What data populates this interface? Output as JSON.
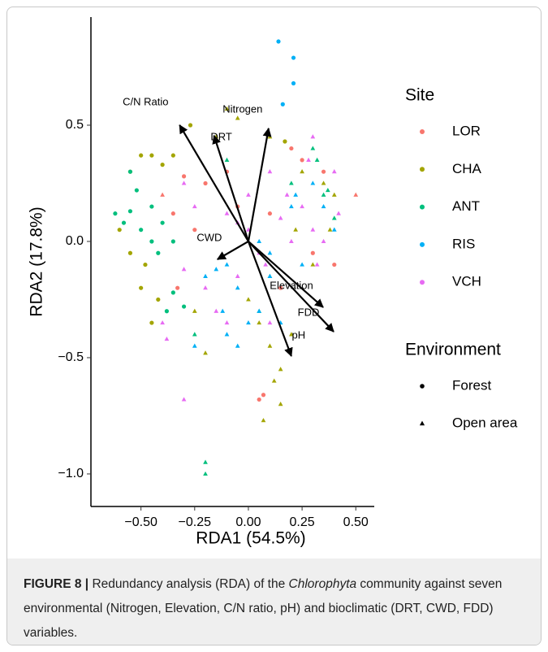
{
  "chart_data": {
    "type": "scatter",
    "x_label": "RDA1 (54.5%)",
    "y_label": "RDA2 (17.8%)",
    "xlim": [
      -0.733,
      0.586
    ],
    "ylim": [
      -1.14,
      0.965
    ],
    "xticks": [
      {
        "value": -0.5,
        "label": "−0.50"
      },
      {
        "value": -0.25,
        "label": "−0.25"
      },
      {
        "value": 0,
        "label": "0.00"
      },
      {
        "value": 0.25,
        "label": "0.25"
      },
      {
        "value": 0.5,
        "label": "0.50"
      }
    ],
    "yticks": [
      {
        "value": -1.0,
        "label": "−1.0"
      },
      {
        "value": -0.5,
        "label": "−0.5"
      },
      {
        "value": 0,
        "label": "0.0"
      },
      {
        "value": 0.5,
        "label": "0.5"
      }
    ],
    "legend_title": "Site",
    "series": [
      {
        "name": "LOR",
        "color": "#F8766D",
        "x": [
          -0.3,
          -0.35,
          -0.33,
          -0.2,
          0.05,
          0.07,
          0.5,
          0.4,
          0.25,
          0.1,
          -0.1,
          0.3,
          -0.4,
          0.15,
          0.2,
          -0.05,
          0.35,
          -0.25
        ],
        "values": [
          0.28,
          0.12,
          -0.2,
          0.25,
          -0.68,
          -0.66,
          0.2,
          -0.1,
          0.35,
          0.12,
          0.3,
          -0.05,
          0.2,
          -0.2,
          0.4,
          0.15,
          0.3,
          0.05
        ],
        "markers": [
          "circle",
          "circle",
          "circle",
          "circle",
          "circle",
          "circle",
          "triangle",
          "circle",
          "circle",
          "circle",
          "circle",
          "circle",
          "triangle",
          "circle",
          "circle",
          "circle",
          "circle",
          "circle"
        ]
      },
      {
        "name": "CHA",
        "color": "#A3A500",
        "x": [
          -0.5,
          -0.45,
          -0.4,
          -0.55,
          -0.35,
          -0.27,
          -0.1,
          -0.05,
          0.1,
          0.17,
          0.25,
          0.35,
          0.38,
          -0.55,
          -0.6,
          -0.48,
          -0.5,
          0.12,
          0.15,
          0.1,
          0.2,
          0.05,
          -0.2,
          0.0,
          0.3,
          -0.15,
          -0.25,
          0.15,
          0.22,
          -0.42,
          0.4,
          0.07,
          -0.45
        ],
        "values": [
          0.37,
          0.37,
          0.33,
          0.3,
          0.37,
          0.5,
          0.57,
          0.53,
          0.45,
          0.43,
          0.3,
          0.25,
          0.05,
          -0.05,
          0.05,
          -0.1,
          -0.2,
          -0.6,
          -0.7,
          -0.45,
          -0.4,
          -0.35,
          -0.48,
          -0.25,
          -0.1,
          0.45,
          -0.3,
          -0.55,
          0.05,
          -0.25,
          0.2,
          -0.77,
          -0.35
        ],
        "markers": [
          "circle",
          "circle",
          "circle",
          "circle",
          "circle",
          "circle",
          "triangle",
          "triangle",
          "triangle",
          "circle",
          "triangle",
          "triangle",
          "triangle",
          "circle",
          "circle",
          "circle",
          "circle",
          "triangle",
          "triangle",
          "triangle",
          "triangle",
          "triangle",
          "triangle",
          "triangle",
          "triangle",
          "triangle",
          "triangle",
          "triangle",
          "triangle",
          "circle",
          "triangle",
          "triangle",
          "circle"
        ]
      },
      {
        "name": "ANT",
        "color": "#00BF7D",
        "x": [
          -0.62,
          -0.58,
          -0.55,
          -0.5,
          -0.45,
          -0.4,
          -0.35,
          -0.45,
          -0.52,
          -0.42,
          -0.35,
          -0.3,
          -0.2,
          -0.2,
          0.3,
          0.35,
          0.4,
          0.37,
          -0.25,
          0.05,
          0.2,
          0.1,
          -0.1,
          0.32,
          -0.55,
          -0.38
        ],
        "values": [
          0.12,
          0.08,
          0.13,
          0.05,
          0.0,
          0.08,
          0.0,
          0.15,
          0.22,
          -0.05,
          -0.22,
          -0.28,
          -0.95,
          -1.0,
          0.4,
          0.2,
          0.1,
          0.22,
          -0.4,
          -0.3,
          0.25,
          -0.15,
          0.35,
          0.35,
          0.3,
          -0.3
        ],
        "markers": [
          "circle",
          "circle",
          "circle",
          "circle",
          "circle",
          "circle",
          "circle",
          "circle",
          "circle",
          "circle",
          "circle",
          "circle",
          "triangle",
          "triangle",
          "triangle",
          "triangle",
          "triangle",
          "triangle",
          "triangle",
          "triangle",
          "triangle",
          "triangle",
          "triangle",
          "triangle",
          "circle",
          "circle"
        ]
      },
      {
        "name": "RIS",
        "color": "#00B0F6",
        "x": [
          0.14,
          0.21,
          0.21,
          0.16,
          -0.1,
          -0.15,
          -0.2,
          0.05,
          0.1,
          -0.05,
          0.0,
          0.15,
          -0.05,
          -0.12,
          0.25,
          0.3,
          0.35,
          0.4,
          0.2,
          -0.25,
          0.05,
          0.1,
          -0.1,
          0.22
        ],
        "values": [
          0.86,
          0.79,
          0.68,
          0.59,
          -0.1,
          -0.12,
          -0.15,
          -0.3,
          -0.15,
          -0.2,
          -0.35,
          -0.35,
          -0.45,
          -0.3,
          -0.1,
          0.25,
          0.15,
          0.05,
          0.15,
          -0.45,
          0.0,
          -0.05,
          -0.4,
          0.2
        ],
        "markers": [
          "circle",
          "circle",
          "circle",
          "circle",
          "triangle",
          "triangle",
          "triangle",
          "triangle",
          "triangle",
          "triangle",
          "triangle",
          "triangle",
          "triangle",
          "triangle",
          "triangle",
          "triangle",
          "triangle",
          "triangle",
          "triangle",
          "triangle",
          "triangle",
          "triangle",
          "triangle",
          "triangle"
        ]
      },
      {
        "name": "VCH",
        "color": "#E76BF3",
        "x": [
          -0.1,
          -0.05,
          0.0,
          0.05,
          0.08,
          0.15,
          0.18,
          0.25,
          0.28,
          0.3,
          0.35,
          0.32,
          -0.38,
          -0.3,
          -0.15,
          -0.2,
          -0.05,
          0.0,
          0.1,
          0.4,
          0.42,
          -0.25,
          -0.3,
          -0.4,
          0.1,
          0.2,
          -0.3,
          -0.1,
          0.3
        ],
        "values": [
          0.12,
          0.08,
          0.05,
          -0.05,
          -0.1,
          0.1,
          0.2,
          0.15,
          0.35,
          0.05,
          0.0,
          -0.1,
          -0.42,
          -0.68,
          -0.3,
          -0.2,
          -0.15,
          0.2,
          0.3,
          0.3,
          0.12,
          0.15,
          -0.12,
          -0.35,
          -0.35,
          0.0,
          0.25,
          -0.35,
          0.45
        ],
        "markers": [
          "triangle",
          "triangle",
          "triangle",
          "triangle",
          "triangle",
          "triangle",
          "triangle",
          "triangle",
          "triangle",
          "triangle",
          "triangle",
          "triangle",
          "triangle",
          "triangle",
          "triangle",
          "triangle",
          "triangle",
          "triangle",
          "triangle",
          "triangle",
          "triangle",
          "triangle",
          "triangle",
          "triangle",
          "triangle",
          "triangle",
          "triangle",
          "triangle",
          "triangle"
        ]
      }
    ],
    "environment_legend": {
      "title": "Environment",
      "items": [
        {
          "name": "Forest",
          "marker": "circle"
        },
        {
          "name": "Open area",
          "marker": "triangle"
        }
      ]
    },
    "arrows": [
      {
        "label": "C/N Ratio",
        "x": -0.32,
        "y": 0.5
      },
      {
        "label": "Nitrogen",
        "x": 0.094,
        "y": 0.486
      },
      {
        "label": "DRT",
        "x": -0.16,
        "y": 0.455
      },
      {
        "label": "CWD",
        "x": -0.144,
        "y": -0.077
      },
      {
        "label": "Elevation",
        "x": 0.348,
        "y": -0.283
      },
      {
        "label": "FDD",
        "x": 0.397,
        "y": -0.388
      },
      {
        "label": "pH",
        "x": 0.2,
        "y": -0.493
      }
    ]
  },
  "caption": {
    "label": "FIGURE 8 |",
    "parts": [
      " Redundancy analysis (RDA) of the ",
      "Chlorophyta",
      " community against seven environmental (Nitrogen, Elevation, C/N ratio, pH) and bioclimatic (DRT, CWD, FDD) variables."
    ]
  }
}
